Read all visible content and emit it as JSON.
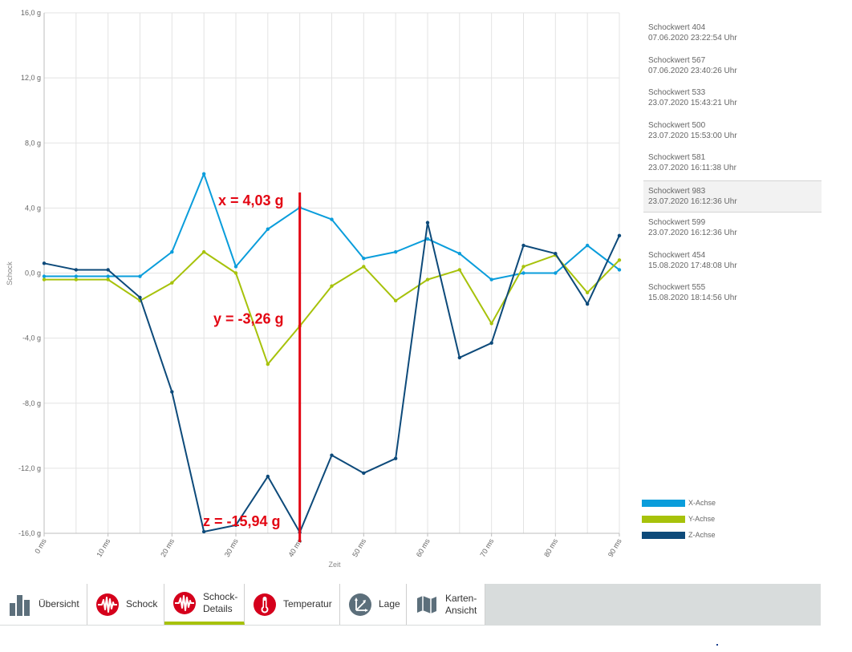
{
  "chart_data": {
    "type": "line",
    "ylabel": "Schock",
    "xlabel": "Zeit",
    "ylim": [
      -16,
      16
    ],
    "xlim": [
      0,
      90
    ],
    "y_ticks": [
      {
        "value": 16,
        "label": "16,0 g"
      },
      {
        "value": 12,
        "label": "12,0 g"
      },
      {
        "value": 8,
        "label": "8,0 g"
      },
      {
        "value": 4,
        "label": "4,0 g"
      },
      {
        "value": 0,
        "label": "0,0 g"
      },
      {
        "value": -4,
        "label": "-4,0 g"
      },
      {
        "value": -8,
        "label": "-8,0 g"
      },
      {
        "value": -12,
        "label": "-12,0 g"
      },
      {
        "value": -16,
        "label": "-16,0 g"
      }
    ],
    "x_ticks": [
      {
        "value": 0,
        "label": "0 ms"
      },
      {
        "value": 10,
        "label": "10 ms"
      },
      {
        "value": 20,
        "label": "20 ms"
      },
      {
        "value": 30,
        "label": "30 ms"
      },
      {
        "value": 40,
        "label": "40 ms"
      },
      {
        "value": 50,
        "label": "50 ms"
      },
      {
        "value": 60,
        "label": "60 ms"
      },
      {
        "value": 70,
        "label": "70 ms"
      },
      {
        "value": 80,
        "label": "80 ms"
      },
      {
        "value": 90,
        "label": "90 ms"
      }
    ],
    "x": [
      0,
      5,
      10,
      15,
      20,
      25,
      30,
      35,
      40,
      45,
      50,
      55,
      60,
      65,
      70,
      75,
      80,
      85,
      90
    ],
    "grid": true,
    "legend_position": "right",
    "series": [
      {
        "name": "X-Achse",
        "color": "#0a9ddb",
        "values": [
          -0.2,
          -0.2,
          -0.2,
          -0.2,
          1.3,
          6.1,
          0.4,
          2.7,
          4.03,
          3.3,
          0.9,
          1.3,
          2.1,
          1.2,
          -0.4,
          0.0,
          0.0,
          1.7,
          0.2
        ]
      },
      {
        "name": "Y-Achse",
        "color": "#a7c20b",
        "values": [
          -0.4,
          -0.4,
          -0.4,
          -1.7,
          -0.6,
          1.3,
          0.0,
          -5.6,
          -3.26,
          -0.8,
          0.4,
          -1.7,
          -0.4,
          0.2,
          -3.1,
          0.4,
          1.1,
          -1.2,
          0.8
        ]
      },
      {
        "name": "Z-Achse",
        "color": "#0d4a7a",
        "values": [
          0.6,
          0.2,
          0.2,
          -1.5,
          -7.3,
          -15.9,
          -15.5,
          -12.5,
          -15.94,
          -11.2,
          -12.3,
          -11.4,
          3.1,
          -5.2,
          -4.3,
          1.7,
          1.2,
          -1.9,
          2.3
        ]
      }
    ],
    "cursor": {
      "x": 40,
      "color": "#e30613"
    },
    "annotations": [
      {
        "text": "x = 4,03 g",
        "y": 4.03
      },
      {
        "text": "y = -3,26 g",
        "y": -3.26
      },
      {
        "text": "z = -15,94 g",
        "y": -15.94
      }
    ]
  },
  "events": [
    {
      "title": "Schockwert 404",
      "time": "07.06.2020 23:22:54 Uhr",
      "selected": false
    },
    {
      "title": "Schockwert 567",
      "time": "07.06.2020 23:40:26 Uhr",
      "selected": false
    },
    {
      "title": "Schockwert 533",
      "time": "23.07.2020 15:43:21 Uhr",
      "selected": false
    },
    {
      "title": "Schockwert 500",
      "time": "23.07.2020 15:53:00 Uhr",
      "selected": false
    },
    {
      "title": "Schockwert 581",
      "time": "23.07.2020 16:11:38 Uhr",
      "selected": false
    },
    {
      "title": "Schockwert 983",
      "time": "23.07.2020 16:12:36 Uhr",
      "selected": true
    },
    {
      "title": "Schockwert 599",
      "time": "23.07.2020 16:12:36 Uhr",
      "selected": false
    },
    {
      "title": "Schockwert 454",
      "time": "15.08.2020 17:48:08 Uhr",
      "selected": false
    },
    {
      "title": "Schockwert 555",
      "time": "15.08.2020 18:14:56 Uhr",
      "selected": false
    }
  ],
  "tabs": [
    {
      "key": "uebersicht",
      "label": "Übersicht",
      "icon": "bar-chart-icon",
      "active": false
    },
    {
      "key": "schock",
      "label": "Schock",
      "icon": "shock-wave-icon",
      "active": false
    },
    {
      "key": "schock-details",
      "label": "Schock-\nDetails",
      "icon": "shock-wave-icon",
      "active": true
    },
    {
      "key": "temperatur",
      "label": "Temperatur",
      "icon": "thermometer-icon",
      "active": false
    },
    {
      "key": "lage",
      "label": "Lage",
      "icon": "orientation-axes-icon",
      "active": false
    },
    {
      "key": "karten-ansicht",
      "label": "Karten-\nAnsicht",
      "icon": "map-icon",
      "active": false
    }
  ]
}
